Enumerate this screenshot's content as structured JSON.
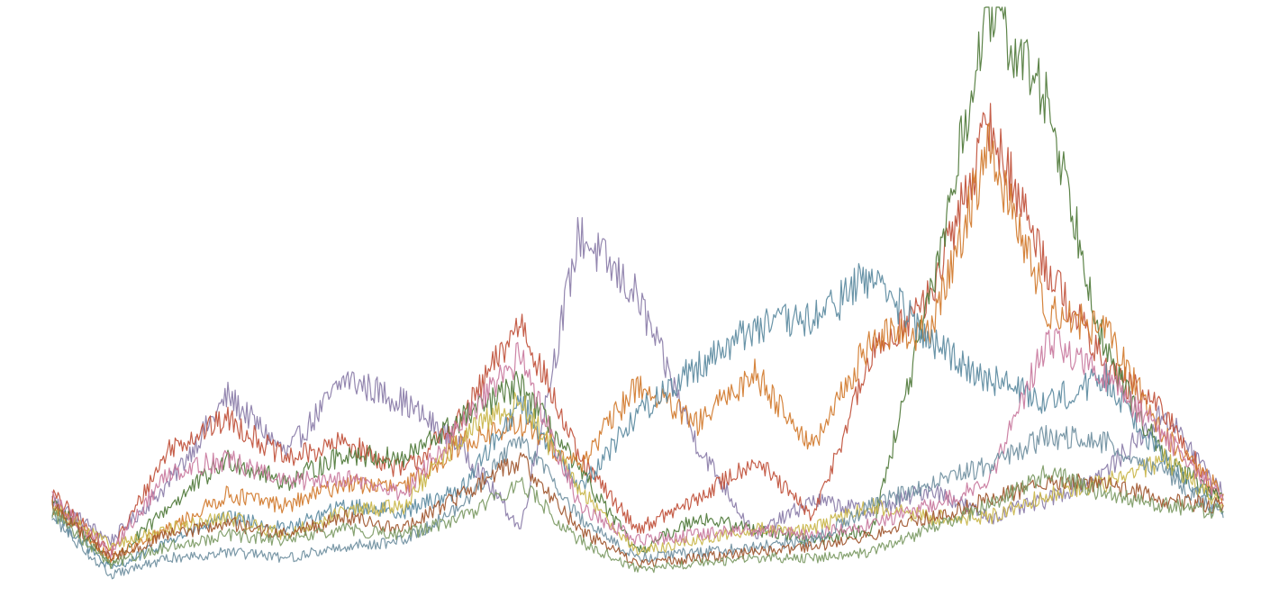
{
  "chart_data": {
    "type": "line",
    "title": "",
    "xlabel": "",
    "ylabel": "",
    "axes_visible": false,
    "grid": false,
    "legend": "none",
    "x": [
      0,
      5,
      10,
      15,
      20,
      25,
      30,
      35,
      40,
      45,
      50,
      55,
      60,
      65,
      70,
      75,
      80,
      85,
      90,
      95,
      100
    ],
    "ylim": [
      0,
      100
    ],
    "series": [
      {
        "color": "#8a7ca8",
        "values": [
          15,
          8,
          18,
          33,
          23,
          36,
          32,
          24,
          10,
          61,
          50,
          25,
          9,
          15,
          13,
          17,
          12,
          15,
          20,
          30,
          16
        ]
      },
      {
        "color": "#c0503a",
        "values": [
          16,
          6,
          24,
          29,
          22,
          25,
          20,
          29,
          46,
          22,
          10,
          15,
          22,
          12,
          40,
          50,
          80,
          55,
          38,
          30,
          14
        ]
      },
      {
        "color": "#4f7a3a",
        "values": [
          15,
          4,
          14,
          22,
          18,
          23,
          22,
          29,
          35,
          20,
          6,
          12,
          10,
          8,
          10,
          50,
          100,
          84,
          40,
          22,
          15
        ]
      },
      {
        "color": "#d17a2c",
        "values": [
          14,
          5,
          10,
          16,
          14,
          18,
          17,
          25,
          28,
          21,
          35,
          28,
          37,
          24,
          43,
          44,
          76,
          48,
          44,
          26,
          16
        ]
      },
      {
        "color": "#5b8aa0",
        "values": [
          13,
          3,
          8,
          12,
          10,
          14,
          13,
          17,
          32,
          17,
          30,
          38,
          45,
          46,
          54,
          42,
          36,
          32,
          36,
          22,
          13
        ]
      },
      {
        "color": "#c9b64a",
        "values": [
          14,
          7,
          10,
          12,
          9,
          13,
          14,
          26,
          32,
          17,
          6,
          8,
          10,
          10,
          14,
          12,
          12,
          16,
          18,
          22,
          14
        ]
      },
      {
        "color": "#c9799e",
        "values": [
          15,
          6,
          20,
          22,
          18,
          19,
          16,
          28,
          40,
          14,
          8,
          9,
          10,
          9,
          11,
          14,
          18,
          43,
          36,
          26,
          15
        ]
      },
      {
        "color": "#6f8f9f",
        "values": [
          12,
          2,
          5,
          6,
          5,
          7,
          8,
          14,
          26,
          12,
          5,
          6,
          7,
          8,
          14,
          18,
          21,
          26,
          25,
          20,
          12
        ]
      },
      {
        "color": "#a0562e",
        "values": [
          14,
          5,
          9,
          11,
          9,
          12,
          10,
          16,
          22,
          10,
          4,
          5,
          6,
          7,
          9,
          12,
          15,
          18,
          18,
          15,
          14
        ]
      },
      {
        "color": "#7c9a64",
        "values": [
          13,
          4,
          7,
          9,
          8,
          10,
          9,
          12,
          18,
          8,
          3,
          4,
          5,
          5,
          6,
          10,
          14,
          20,
          16,
          14,
          13
        ]
      }
    ]
  }
}
